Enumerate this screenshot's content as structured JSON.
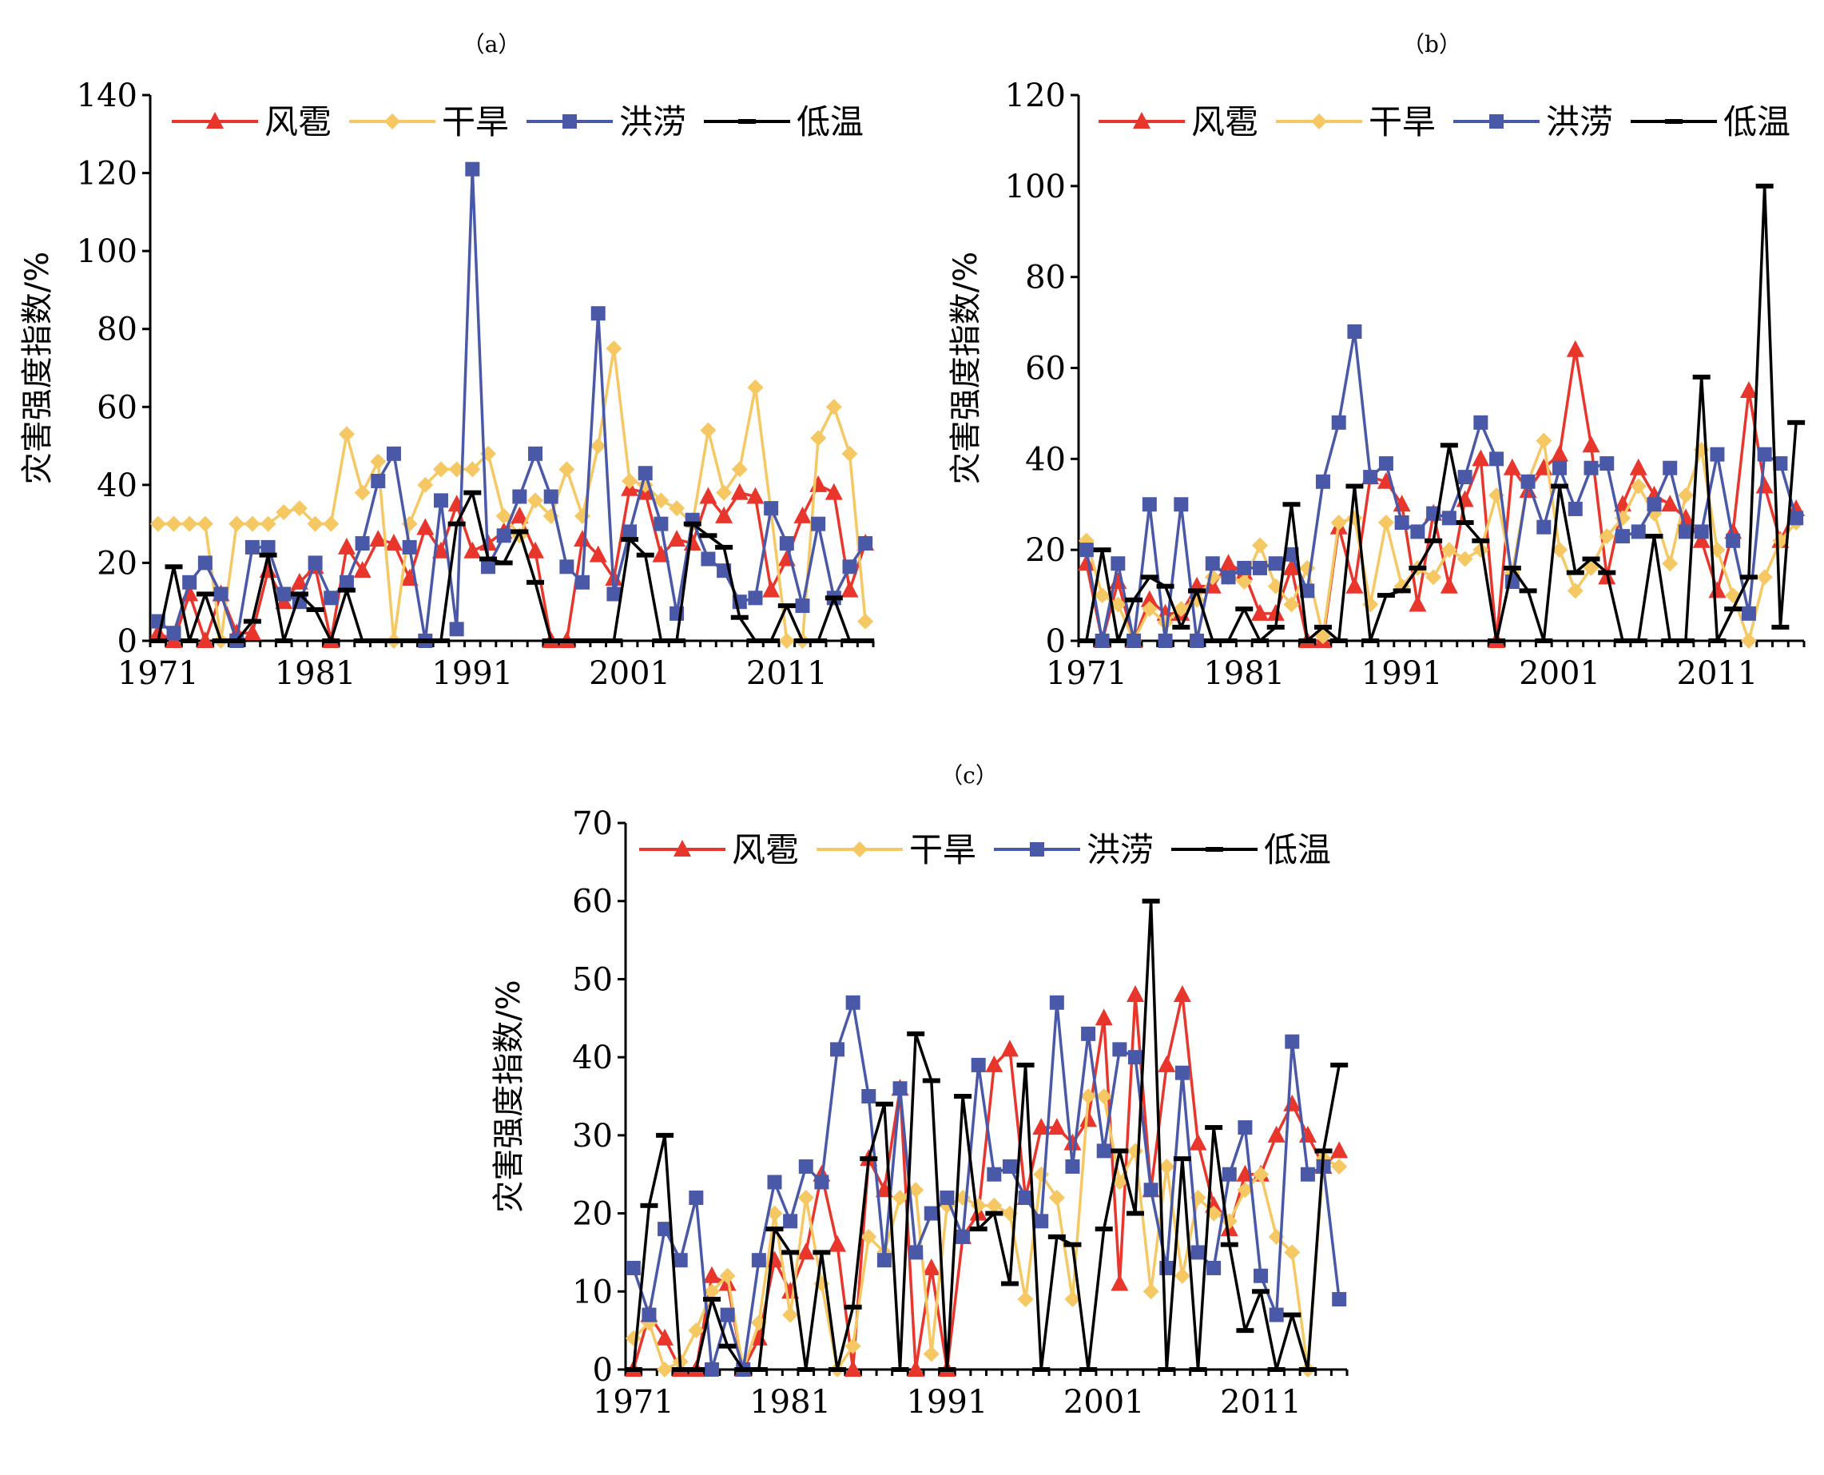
{
  "chart_data": [
    {
      "panel": "（a）",
      "type": "line",
      "ylabel": "灾害强度指数/%",
      "ylim": [
        0,
        140
      ],
      "yticks": [
        0,
        20,
        40,
        60,
        80,
        100,
        120,
        140
      ],
      "x_start": 1971,
      "x_end": 2016,
      "xticks": [
        1971,
        1981,
        1991,
        2001,
        2011
      ],
      "legend_position": "top",
      "series": [
        {
          "name": "风雹",
          "color": "#e8362c",
          "marker": "triangle",
          "values": [
            2,
            0,
            12,
            0,
            12,
            2,
            2,
            18,
            10,
            15,
            19,
            0,
            24,
            18,
            26,
            25,
            16,
            29,
            23,
            35,
            23,
            25,
            28,
            32,
            23,
            0,
            0,
            26,
            22,
            16,
            39,
            38,
            22,
            26,
            25,
            37,
            32,
            38,
            37,
            13,
            21,
            32,
            40,
            38,
            13,
            25
          ]
        },
        {
          "name": "干旱",
          "color": "#f5c863",
          "marker": "diamond",
          "values": [
            30,
            30,
            30,
            30,
            0,
            30,
            30,
            30,
            33,
            34,
            30,
            30,
            53,
            38,
            46,
            0,
            30,
            40,
            44,
            44,
            44,
            48,
            32,
            27,
            36,
            32,
            44,
            32,
            50,
            75,
            41,
            40,
            36,
            34,
            30,
            54,
            38,
            44,
            65,
            33,
            0,
            0,
            52,
            60,
            48,
            5
          ]
        },
        {
          "name": "洪涝",
          "color": "#4a58a8",
          "marker": "square",
          "values": [
            5,
            2,
            15,
            20,
            12,
            0,
            24,
            24,
            12,
            10,
            20,
            11,
            15,
            25,
            41,
            48,
            24,
            0,
            36,
            3,
            121,
            19,
            27,
            37,
            48,
            37,
            19,
            15,
            84,
            12,
            28,
            43,
            30,
            7,
            31,
            21,
            18,
            10,
            11,
            34,
            25,
            9,
            30,
            11,
            19,
            25
          ]
        },
        {
          "name": "低温",
          "color": "#000000",
          "marker": "dash",
          "values": [
            0,
            19,
            0,
            12,
            0,
            0,
            5,
            22,
            0,
            12,
            8,
            0,
            13,
            0,
            0,
            0,
            0,
            0,
            0,
            30,
            38,
            21,
            20,
            28,
            15,
            0,
            0,
            0,
            0,
            0,
            26,
            22,
            0,
            0,
            30,
            27,
            24,
            6,
            0,
            0,
            9,
            0,
            0,
            11,
            0,
            0
          ]
        }
      ]
    },
    {
      "panel": "（b）",
      "type": "line",
      "ylabel": "灾害强度指数/%",
      "ylim": [
        0,
        120
      ],
      "yticks": [
        0,
        20,
        40,
        60,
        80,
        100,
        120
      ],
      "x_start": 1971,
      "x_end": 2016,
      "xticks": [
        1971,
        1981,
        1991,
        2001,
        2011
      ],
      "legend_position": "top",
      "series": [
        {
          "name": "风雹",
          "color": "#e8362c",
          "marker": "triangle",
          "values": [
            17,
            0,
            13,
            0,
            9,
            6,
            6,
            12,
            12,
            17,
            15,
            6,
            6,
            16,
            0,
            0,
            25,
            12,
            36,
            35,
            30,
            8,
            28,
            12,
            31,
            40,
            0,
            38,
            33,
            38,
            41,
            64,
            43,
            14,
            30,
            38,
            32,
            30,
            27,
            22,
            11,
            24,
            55,
            34,
            22,
            29
          ]
        },
        {
          "name": "干旱",
          "color": "#f5c863",
          "marker": "diamond",
          "values": [
            22,
            10,
            8,
            0,
            7,
            4,
            7,
            9,
            14,
            14,
            13,
            21,
            12,
            8,
            16,
            1,
            26,
            27,
            8,
            26,
            12,
            16,
            14,
            20,
            18,
            20,
            32,
            15,
            35,
            44,
            20,
            11,
            16,
            23,
            27,
            34,
            28,
            17,
            32,
            42,
            20,
            10,
            0,
            14,
            22,
            26
          ]
        },
        {
          "name": "洪涝",
          "color": "#4a58a8",
          "marker": "square",
          "values": [
            20,
            0,
            17,
            0,
            30,
            0,
            30,
            0,
            17,
            14,
            16,
            16,
            17,
            19,
            11,
            35,
            48,
            68,
            36,
            39,
            26,
            24,
            28,
            27,
            36,
            48,
            40,
            13,
            35,
            25,
            38,
            29,
            38,
            39,
            23,
            24,
            30,
            38,
            24,
            24,
            41,
            22,
            6,
            41,
            39,
            27
          ]
        },
        {
          "name": "低温",
          "color": "#000000",
          "marker": "dash",
          "values": [
            0,
            20,
            0,
            9,
            14,
            12,
            3,
            11,
            0,
            0,
            7,
            0,
            3,
            30,
            0,
            3,
            0,
            34,
            0,
            10,
            11,
            16,
            22,
            43,
            26,
            22,
            0,
            16,
            11,
            0,
            34,
            15,
            18,
            15,
            0,
            0,
            23,
            0,
            0,
            58,
            0,
            7,
            14,
            100,
            3,
            48
          ]
        }
      ]
    },
    {
      "panel": "（c）",
      "type": "line",
      "ylabel": "灾害强度指数/%",
      "ylim": [
        0,
        70
      ],
      "yticks": [
        0,
        10,
        20,
        30,
        40,
        50,
        60,
        70
      ],
      "x_start": 1971,
      "x_end": 2016,
      "xticks": [
        1971,
        1981,
        1991,
        2001,
        2011
      ],
      "legend_position": "top",
      "series": [
        {
          "name": "风雹",
          "color": "#e8362c",
          "marker": "triangle",
          "values": [
            0,
            7,
            4,
            0,
            0,
            12,
            11,
            0,
            4,
            14,
            10,
            15,
            25,
            16,
            0,
            27,
            23,
            36,
            0,
            13,
            0,
            17,
            20,
            39,
            41,
            22,
            31,
            31,
            29,
            32,
            45,
            11,
            48,
            23,
            39,
            48,
            29,
            21,
            18,
            25,
            25,
            30,
            34,
            30,
            26,
            28
          ]
        },
        {
          "name": "干旱",
          "color": "#f5c863",
          "marker": "diamond",
          "values": [
            4,
            6,
            0,
            1,
            5,
            10,
            12,
            0,
            6,
            20,
            7,
            22,
            11,
            0,
            3,
            17,
            15,
            22,
            23,
            2,
            21,
            22,
            21,
            21,
            20,
            9,
            25,
            22,
            9,
            35,
            35,
            24,
            28,
            10,
            26,
            12,
            22,
            20,
            19,
            23,
            25,
            17,
            15,
            0,
            27,
            26
          ]
        },
        {
          "name": "洪涝",
          "color": "#4a58a8",
          "marker": "square",
          "values": [
            13,
            7,
            18,
            14,
            22,
            0,
            7,
            0,
            14,
            24,
            19,
            26,
            24,
            41,
            47,
            35,
            14,
            36,
            15,
            20,
            22,
            17,
            39,
            25,
            26,
            22,
            19,
            47,
            26,
            43,
            28,
            41,
            40,
            23,
            13,
            38,
            15,
            13,
            25,
            31,
            12,
            7,
            42,
            25,
            26,
            9
          ]
        },
        {
          "name": "低温",
          "color": "#000000",
          "marker": "dash",
          "values": [
            0,
            21,
            30,
            0,
            0,
            9,
            3,
            0,
            0,
            18,
            15,
            0,
            15,
            0,
            8,
            27,
            34,
            0,
            43,
            37,
            0,
            35,
            18,
            20,
            11,
            39,
            0,
            17,
            16,
            0,
            18,
            28,
            20,
            60,
            0,
            27,
            0,
            31,
            16,
            5,
            10,
            0,
            7,
            0,
            28,
            39
          ]
        }
      ]
    }
  ]
}
